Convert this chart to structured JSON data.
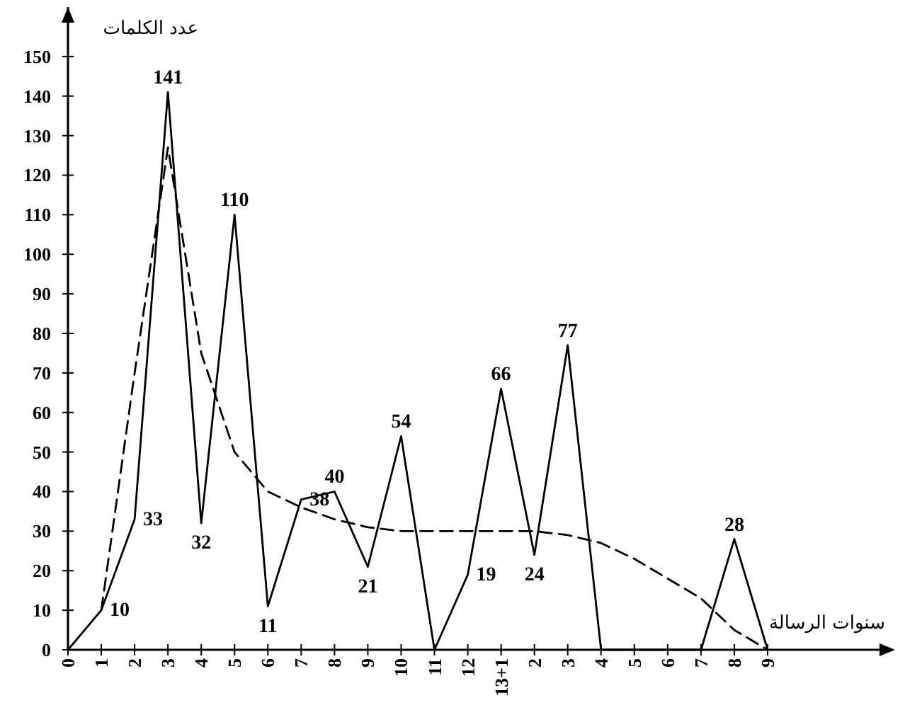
{
  "chart_data": {
    "type": "line",
    "xlabel": "سنوات الرسالة",
    "ylabel": "عدد الكلمات",
    "categories": [
      "0",
      "1",
      "2",
      "3",
      "4",
      "5",
      "6",
      "7",
      "8",
      "9",
      "10",
      "11",
      "12",
      "13+1",
      "2",
      "3",
      "4",
      "5",
      "6",
      "7",
      "8",
      "9"
    ],
    "series": [
      {
        "color": "#000000",
        "line_style": "solid",
        "values": [
          0,
          10,
          33,
          141,
          32,
          110,
          11,
          38,
          40,
          21,
          54,
          0,
          19,
          66,
          24,
          77,
          0,
          0,
          0,
          0,
          28,
          0
        ],
        "value_labels": [
          null,
          "10",
          "33",
          "141",
          "32",
          "110",
          "11",
          "38",
          "40",
          "21",
          "54",
          null,
          "19",
          "66",
          "24",
          "77",
          null,
          null,
          null,
          null,
          "28",
          null
        ]
      },
      {
        "type": "line",
        "color": "#000000",
        "line_style": "dashed",
        "values": [
          null,
          10,
          70,
          127,
          75,
          50,
          40,
          36,
          33,
          31,
          30,
          30,
          30,
          30,
          30,
          29,
          27,
          23,
          18,
          13,
          5,
          0
        ]
      }
    ],
    "ylim": [
      0,
      162.5
    ],
    "yticks": [
      0,
      10,
      20,
      30,
      40,
      50,
      60,
      70,
      80,
      90,
      100,
      110,
      120,
      130,
      140,
      150
    ],
    "grid": false,
    "marker": "none"
  }
}
